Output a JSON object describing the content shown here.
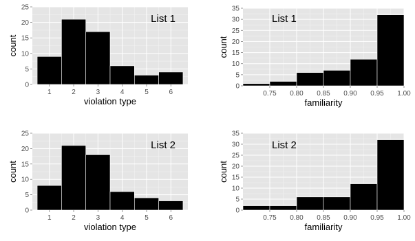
{
  "colors": {
    "panel_bg": "#E5E5E5",
    "grid_major": "#FFFFFF",
    "grid_minor": "#F2F2F2",
    "bar_fill": "#000000",
    "bar_stroke": "#FFFFFF",
    "tick_text": "#4D4D4D"
  },
  "chart_data": [
    {
      "type": "bar",
      "title": "List 1",
      "xlabel": "violation type",
      "ylabel": "count",
      "categories": [
        "1",
        "2",
        "3",
        "4",
        "5",
        "6"
      ],
      "values": [
        9,
        21,
        17,
        6,
        3,
        4
      ],
      "xlim": [
        0.3,
        6.7
      ],
      "ylim": [
        0,
        25
      ],
      "xticks": [
        1,
        2,
        3,
        4,
        5,
        6
      ],
      "yticks": [
        0,
        5,
        10,
        15,
        20,
        25
      ],
      "grid": true,
      "legend": "none"
    },
    {
      "type": "bar",
      "title": "List 1",
      "xlabel": "familiarity",
      "ylabel": "count",
      "bins": [
        [
          0.7,
          0.75
        ],
        [
          0.75,
          0.8
        ],
        [
          0.8,
          0.85
        ],
        [
          0.85,
          0.9
        ],
        [
          0.9,
          0.95
        ],
        [
          0.95,
          1.0
        ]
      ],
      "values": [
        1,
        2,
        6,
        7,
        12,
        32
      ],
      "xlim": [
        0.7,
        1.0
      ],
      "ylim": [
        0,
        35
      ],
      "xticks": [
        "0.75",
        "0.80",
        "0.85",
        "0.90",
        "0.95",
        "1.00"
      ],
      "yticks": [
        0,
        5,
        10,
        15,
        20,
        25,
        30,
        35
      ],
      "grid": true,
      "legend": "none"
    },
    {
      "type": "bar",
      "title": "List 2",
      "xlabel": "violation type",
      "ylabel": "count",
      "categories": [
        "1",
        "2",
        "3",
        "4",
        "5",
        "6"
      ],
      "values": [
        8,
        21,
        18,
        6,
        4,
        3
      ],
      "xlim": [
        0.3,
        6.7
      ],
      "ylim": [
        0,
        25
      ],
      "xticks": [
        1,
        2,
        3,
        4,
        5,
        6
      ],
      "yticks": [
        0,
        5,
        10,
        15,
        20,
        25
      ],
      "grid": true,
      "legend": "none"
    },
    {
      "type": "bar",
      "title": "List 2",
      "xlabel": "familiarity",
      "ylabel": "count",
      "bins": [
        [
          0.7,
          0.75
        ],
        [
          0.75,
          0.8
        ],
        [
          0.8,
          0.85
        ],
        [
          0.85,
          0.9
        ],
        [
          0.9,
          0.95
        ],
        [
          0.95,
          1.0
        ]
      ],
      "values": [
        2,
        2,
        6,
        6,
        12,
        32
      ],
      "xlim": [
        0.7,
        1.0
      ],
      "ylim": [
        0,
        35
      ],
      "xticks": [
        "0.75",
        "0.80",
        "0.85",
        "0.90",
        "0.95",
        "1.00"
      ],
      "yticks": [
        0,
        5,
        10,
        15,
        20,
        25,
        30,
        35
      ],
      "grid": true,
      "legend": "none"
    }
  ]
}
